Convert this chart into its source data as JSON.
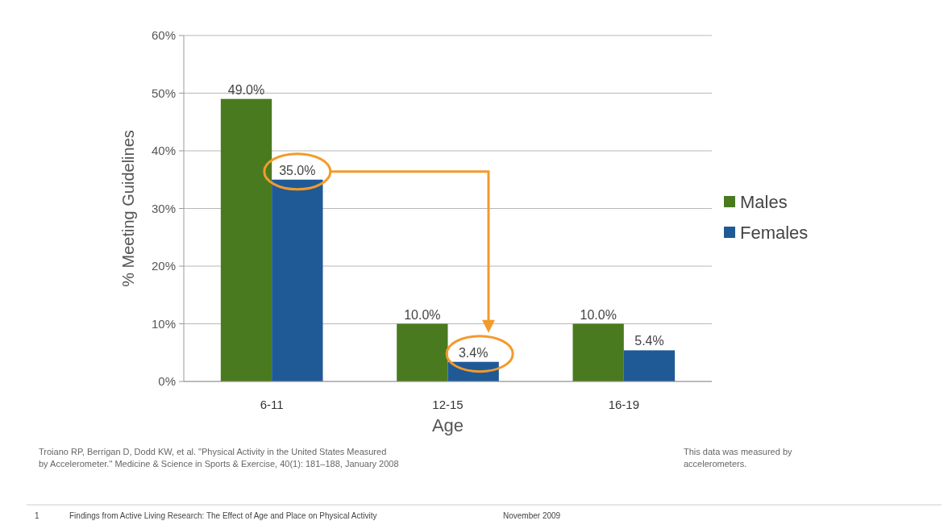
{
  "chart_data": {
    "type": "bar",
    "xlabel": "Age",
    "ylabel": "% Meeting Guidelines",
    "categories": [
      "6-11",
      "12-15",
      "16-19"
    ],
    "series": [
      {
        "name": "Males",
        "color": "#4a7a1f",
        "values": [
          49.0,
          10.0,
          10.0
        ],
        "value_labels": [
          "49.0%",
          "10.0%",
          "10.0%"
        ]
      },
      {
        "name": "Females",
        "color": "#1f5a96",
        "values": [
          35.0,
          3.4,
          5.4
        ],
        "value_labels": [
          "35.0%",
          "3.4%",
          "5.4%"
        ]
      }
    ],
    "ylim": [
      0,
      60
    ],
    "yticks": [
      {
        "value": 0,
        "label": "0%"
      },
      {
        "value": 10,
        "label": "10%"
      },
      {
        "value": 20,
        "label": "20%"
      },
      {
        "value": 30,
        "label": "30%"
      },
      {
        "value": 40,
        "label": "40%"
      },
      {
        "value": 50,
        "label": "50%"
      },
      {
        "value": 60,
        "label": "60%"
      }
    ],
    "grid": "y",
    "legend": "right",
    "annotations": [
      "Troiano RP, Berrigan D, Dodd KW, et al. \"Physical Activity in the United States Measured by Accelerometer.\" Medicine & Science in Sports & Exercise, 40(1): 181–188, January 2008",
      "This data was measured by accelerometers.",
      "1",
      "Findings from Active Living Research: The Effect of Age and Place on Physical Activity",
      "November 2009"
    ]
  }
}
